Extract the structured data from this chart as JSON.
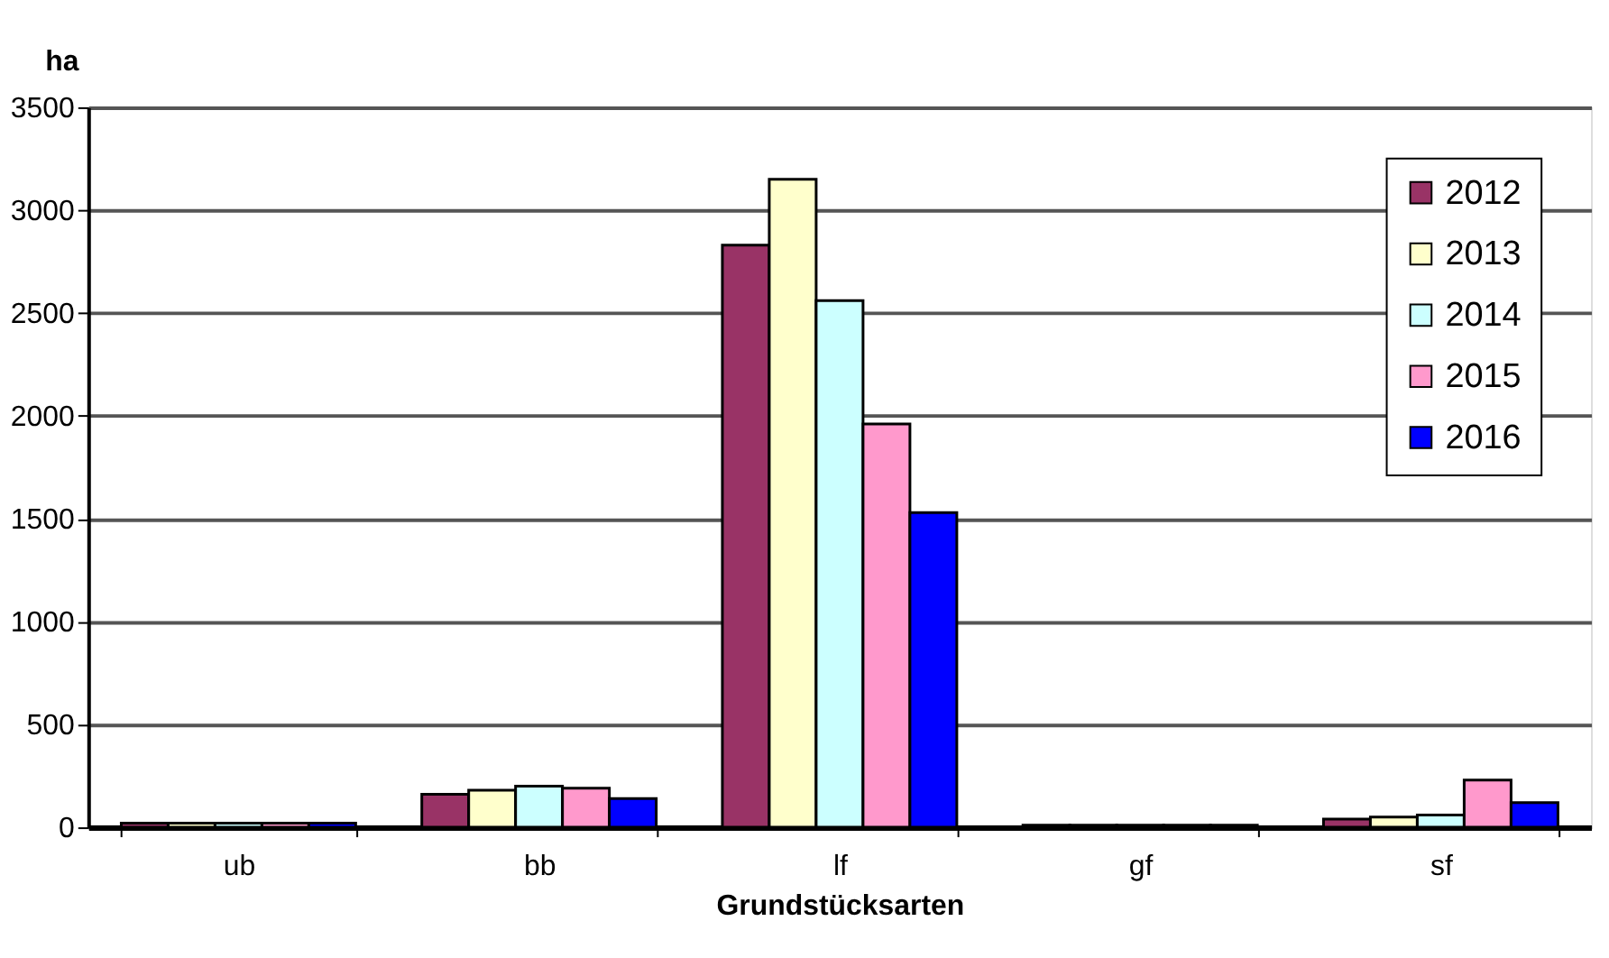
{
  "chart_data": {
    "type": "bar",
    "xlabel": "Grundstücksarten",
    "ylabel": "ha",
    "categories": [
      "ub",
      "bb",
      "lf",
      "gf",
      "sf"
    ],
    "series": [
      {
        "name": "2012",
        "color": "#993366",
        "values": [
          20,
          160,
          2830,
          10,
          40
        ]
      },
      {
        "name": "2013",
        "color": "#ffffcc",
        "values": [
          20,
          180,
          3150,
          10,
          50
        ]
      },
      {
        "name": "2014",
        "color": "#ccffff",
        "values": [
          20,
          200,
          2560,
          10,
          60
        ]
      },
      {
        "name": "2015",
        "color": "#ff99cc",
        "values": [
          20,
          190,
          1960,
          10,
          230
        ]
      },
      {
        "name": "2016",
        "color": "#0000ff",
        "values": [
          20,
          140,
          1530,
          10,
          120
        ]
      }
    ],
    "ylim": [
      0,
      3500
    ],
    "yticks": [
      0,
      500,
      1000,
      1500,
      2000,
      2500,
      3000,
      3500
    ],
    "grid": "y",
    "legend": "top right"
  }
}
